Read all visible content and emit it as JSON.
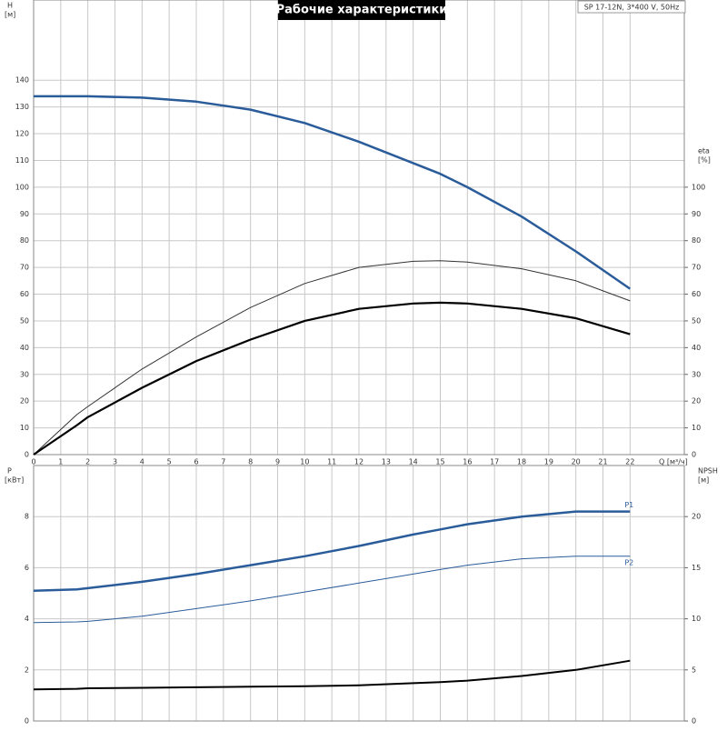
{
  "chart_data": [
    {
      "type": "line",
      "title": "Рабочие характеристики",
      "subtitle": "SP 17-12N, 3*400 V, 50Hz",
      "ylabel": "H",
      "yunit": "[м]",
      "y2label": "eta",
      "y2unit": "[%]",
      "xlabel": "Q [м³/ч]",
      "xlim": [
        0,
        24
      ],
      "xticks": [
        0,
        1,
        2,
        3,
        4,
        5,
        6,
        7,
        8,
        9,
        10,
        11,
        12,
        13,
        14,
        15,
        16,
        17,
        18,
        19,
        20,
        21,
        22
      ],
      "ylim": [
        0,
        170
      ],
      "yticks": [
        0,
        10,
        20,
        30,
        40,
        50,
        60,
        70,
        80,
        90,
        100,
        110,
        120,
        130,
        140
      ],
      "y2lim": [
        0,
        170
      ],
      "y2ticks": [
        0,
        10,
        20,
        30,
        40,
        50,
        60,
        70,
        80,
        90,
        100
      ],
      "grid": true,
      "x": [
        0,
        1.6,
        2,
        4,
        6,
        8,
        10,
        12,
        14,
        15,
        16,
        18,
        20,
        22
      ],
      "series": [
        {
          "color": "#2b5c9a",
          "line_width": 2.5,
          "values": [
            134,
            134,
            134,
            133.5,
            132,
            129,
            124,
            117,
            109,
            105,
            100,
            89,
            76,
            62
          ]
        },
        {
          "color": "#333333",
          "line_width": 1,
          "axis": "y2",
          "values": [
            0,
            15,
            18,
            32,
            44,
            55,
            64,
            70,
            72.3,
            72.5,
            72,
            69.5,
            65,
            57.5
          ]
        },
        {
          "color": "#000000",
          "line_width": 2.2,
          "axis": "y2",
          "values": [
            0,
            11,
            14,
            25,
            35,
            43,
            50,
            54.5,
            56.5,
            56.8,
            56.5,
            54.5,
            51,
            45
          ]
        }
      ]
    },
    {
      "type": "line",
      "ylabel": "P",
      "yunit": "[кВт]",
      "y2label": "NPSH",
      "y2unit": "[м]",
      "xlim": [
        0,
        24
      ],
      "ylim": [
        0,
        10
      ],
      "yticks": [
        0,
        2,
        4,
        6,
        8
      ],
      "y2lim": [
        0,
        25
      ],
      "y2ticks": [
        0,
        5,
        10,
        15,
        20
      ],
      "grid": true,
      "x": [
        0,
        1.6,
        2,
        4,
        6,
        8,
        10,
        12,
        14,
        15,
        16,
        18,
        20,
        22
      ],
      "series": [
        {
          "name": "P1",
          "color": "#2b5c9a",
          "line_width": 2.5,
          "values": [
            5.1,
            5.15,
            5.2,
            5.45,
            5.75,
            6.1,
            6.45,
            6.85,
            7.3,
            7.5,
            7.7,
            8.0,
            8.2,
            8.2
          ]
        },
        {
          "name": "P2",
          "color": "#2b5c9a",
          "line_width": 1,
          "values": [
            3.85,
            3.88,
            3.9,
            4.1,
            4.4,
            4.7,
            5.05,
            5.4,
            5.75,
            5.93,
            6.1,
            6.35,
            6.45,
            6.45
          ]
        },
        {
          "color": "#000000",
          "line_width": 2,
          "axis": "y2",
          "values": [
            3.1,
            3.15,
            3.2,
            3.25,
            3.3,
            3.35,
            3.4,
            3.5,
            3.7,
            3.8,
            3.95,
            4.4,
            5.0,
            5.9
          ]
        }
      ]
    }
  ]
}
